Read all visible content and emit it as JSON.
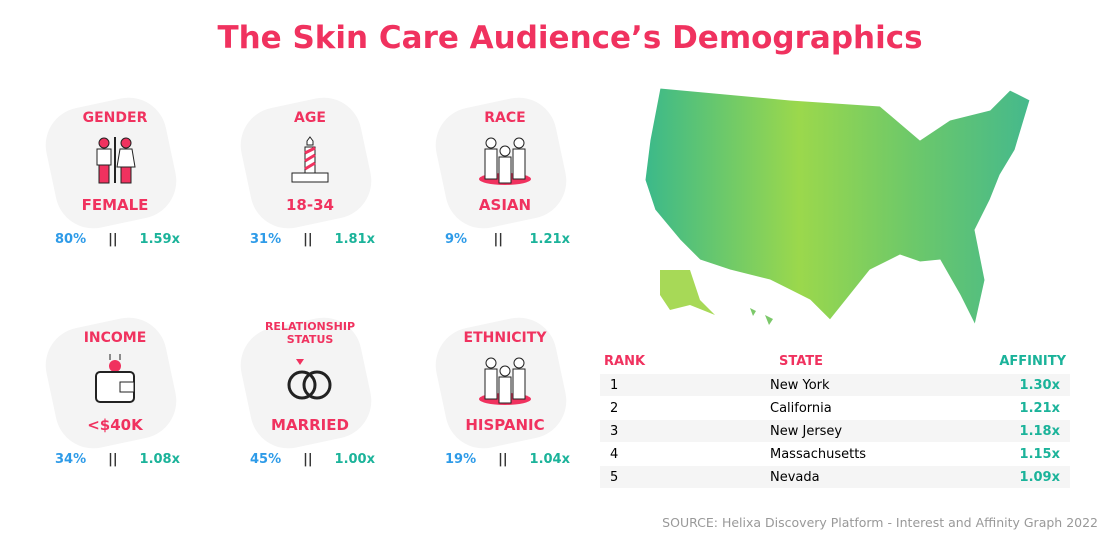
{
  "title": "The Skin Care Audience’s Demographics",
  "cards": [
    {
      "label": "GENDER",
      "value": "FEMALE",
      "pct": "80%",
      "sep": "||",
      "affinity": "1.59x",
      "icon": "gender-icon"
    },
    {
      "label": "AGE",
      "value": "18-34",
      "pct": "31%",
      "sep": "||",
      "affinity": "1.81x",
      "icon": "candle-icon"
    },
    {
      "label": "RACE",
      "value": "ASIAN",
      "pct": "9%",
      "sep": "||",
      "affinity": "1.21x",
      "icon": "people-icon"
    },
    {
      "label": "INCOME",
      "value": "<$40K",
      "pct": "34%",
      "sep": "||",
      "affinity": "1.08x",
      "icon": "wallet-icon"
    },
    {
      "label": "RELATIONSHIP STATUS",
      "value": "MARRIED",
      "pct": "45%",
      "sep": "||",
      "affinity": "1.00x",
      "icon": "rings-icon"
    },
    {
      "label": "ETHNICITY",
      "value": "HISPANIC",
      "pct": "19%",
      "sep": "||",
      "affinity": "1.04x",
      "icon": "people-icon"
    }
  ],
  "table": {
    "headers": [
      "RANK",
      "STATE",
      "AFFINITY"
    ],
    "rows": [
      {
        "rank": "1",
        "state": "New York",
        "affinity": "1.30x"
      },
      {
        "rank": "2",
        "state": "California",
        "affinity": "1.21x"
      },
      {
        "rank": "3",
        "state": "New Jersey",
        "affinity": "1.18x"
      },
      {
        "rank": "4",
        "state": "Massachusetts",
        "affinity": "1.15x"
      },
      {
        "rank": "5",
        "state": "Nevada",
        "affinity": "1.09x"
      }
    ]
  },
  "source": "SOURCE: Helixa Discovery Platform - Interest and Affinity Graph 2022",
  "colors": {
    "pink": "#f0325f",
    "blue": "#2e9be8",
    "teal": "#1bb39a"
  }
}
